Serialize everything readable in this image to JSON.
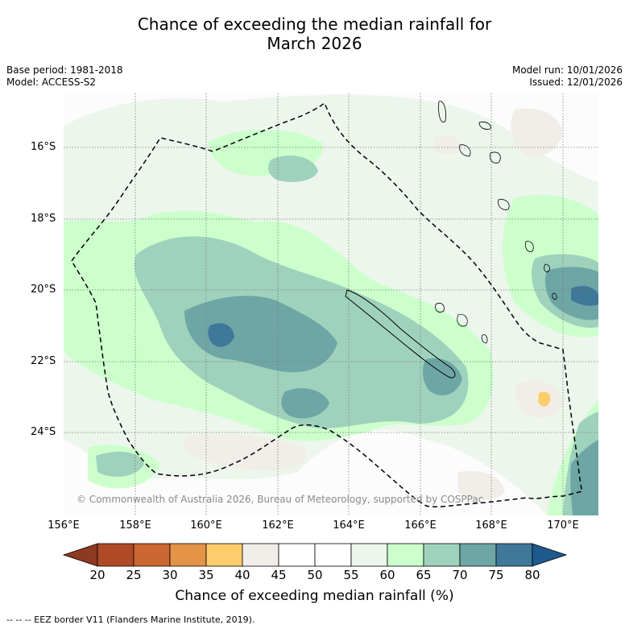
{
  "title_line1": "Chance of exceeding the median rainfall for",
  "title_line2": "March 2026",
  "meta_left": {
    "base_period": "Base period: 1981-2018",
    "model": "Model: ACCESS-S2"
  },
  "meta_right": {
    "model_run": "Model run: 10/01/2026",
    "issued": "Issued: 12/01/2026"
  },
  "lat_labels": [
    "16°S",
    "18°S",
    "20°S",
    "22°S",
    "24°S"
  ],
  "lon_labels": [
    "156°E",
    "158°E",
    "160°E",
    "162°E",
    "164°E",
    "166°E",
    "168°E",
    "170°E"
  ],
  "copyright": "© Commonwealth of Australia 2026, Bureau of Meteorology, supported by COSPPac",
  "colorbar": {
    "title": "Chance of exceeding median rainfall (%)",
    "ticks": [
      "20",
      "25",
      "30",
      "35",
      "40",
      "45",
      "50",
      "55",
      "60",
      "65",
      "70",
      "75",
      "80"
    ],
    "colors": [
      "#8c3a20",
      "#b04a26",
      "#cc6633",
      "#e39447",
      "#fdcd6c",
      "#f1ede8",
      "#ffffff",
      "#ffffff",
      "#ecf6ec",
      "#ccffcc",
      "#9fd2bc",
      "#6ea6a6",
      "#3f7898",
      "#1e5a8c"
    ]
  },
  "footnote": "-- -- -- EEZ border V11 (Flanders Marine Institute, 2019)."
}
